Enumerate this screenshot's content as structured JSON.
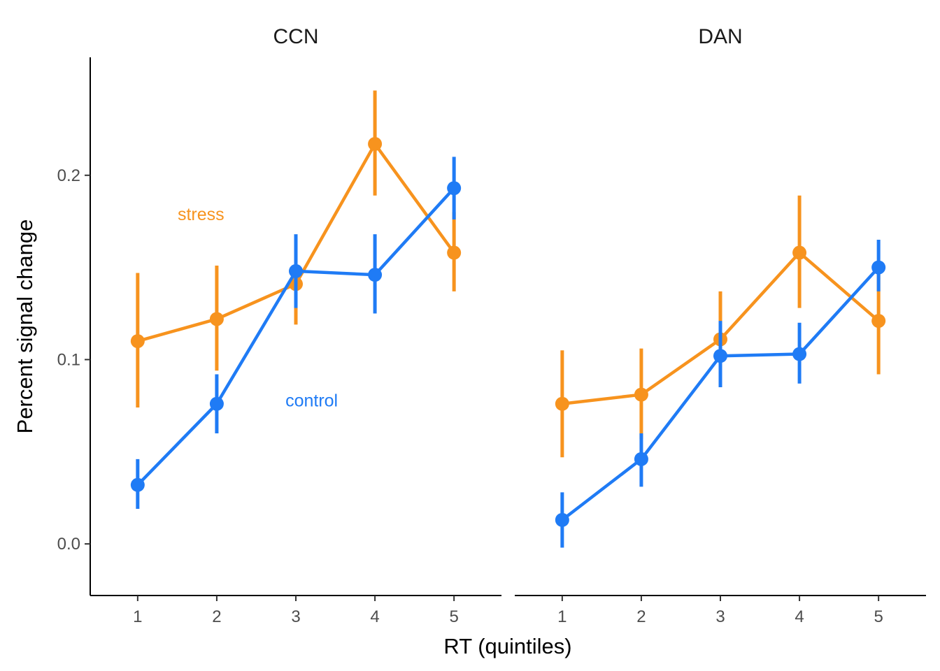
{
  "chart_data": {
    "type": "line",
    "xlabel": "RT (quintiles)",
    "ylabel": "Percent signal change",
    "x": [
      1,
      2,
      3,
      4,
      5
    ],
    "xlim": [
      0.4,
      5.6
    ],
    "ylim": [
      -0.028,
      0.264
    ],
    "yticks": [
      0.0,
      0.1,
      0.2
    ],
    "ytick_labels": [
      "0.0",
      "0.1",
      "0.2"
    ],
    "grid": false,
    "legend": "none",
    "colors": {
      "stress": "#F7931E",
      "control": "#1F7BF5"
    },
    "panels": [
      {
        "title": "CCN",
        "annotations": [
          {
            "text": "stress",
            "series": "stress",
            "x": 1.8,
            "y": 0.179
          },
          {
            "text": "control",
            "series": "control",
            "x": 3.2,
            "y": 0.078
          }
        ],
        "series": [
          {
            "name": "stress",
            "values": [
              0.11,
              0.122,
              0.141,
              0.217,
              0.158
            ],
            "lower": [
              0.074,
              0.094,
              0.119,
              0.189,
              0.137
            ],
            "upper": [
              0.147,
              0.151,
              0.164,
              0.246,
              0.18
            ]
          },
          {
            "name": "control",
            "values": [
              0.032,
              0.076,
              0.148,
              0.146,
              0.193
            ],
            "lower": [
              0.019,
              0.06,
              0.128,
              0.125,
              0.176
            ],
            "upper": [
              0.046,
              0.092,
              0.168,
              0.168,
              0.21
            ]
          }
        ]
      },
      {
        "title": "DAN",
        "annotations": [],
        "series": [
          {
            "name": "stress",
            "values": [
              0.076,
              0.081,
              0.111,
              0.158,
              0.121
            ],
            "lower": [
              0.047,
              0.057,
              0.087,
              0.128,
              0.092
            ],
            "upper": [
              0.105,
              0.106,
              0.137,
              0.189,
              0.149
            ]
          },
          {
            "name": "control",
            "values": [
              0.013,
              0.046,
              0.102,
              0.103,
              0.15
            ],
            "lower": [
              -0.002,
              0.031,
              0.085,
              0.087,
              0.137
            ],
            "upper": [
              0.028,
              0.06,
              0.121,
              0.12,
              0.165
            ]
          }
        ]
      }
    ]
  }
}
